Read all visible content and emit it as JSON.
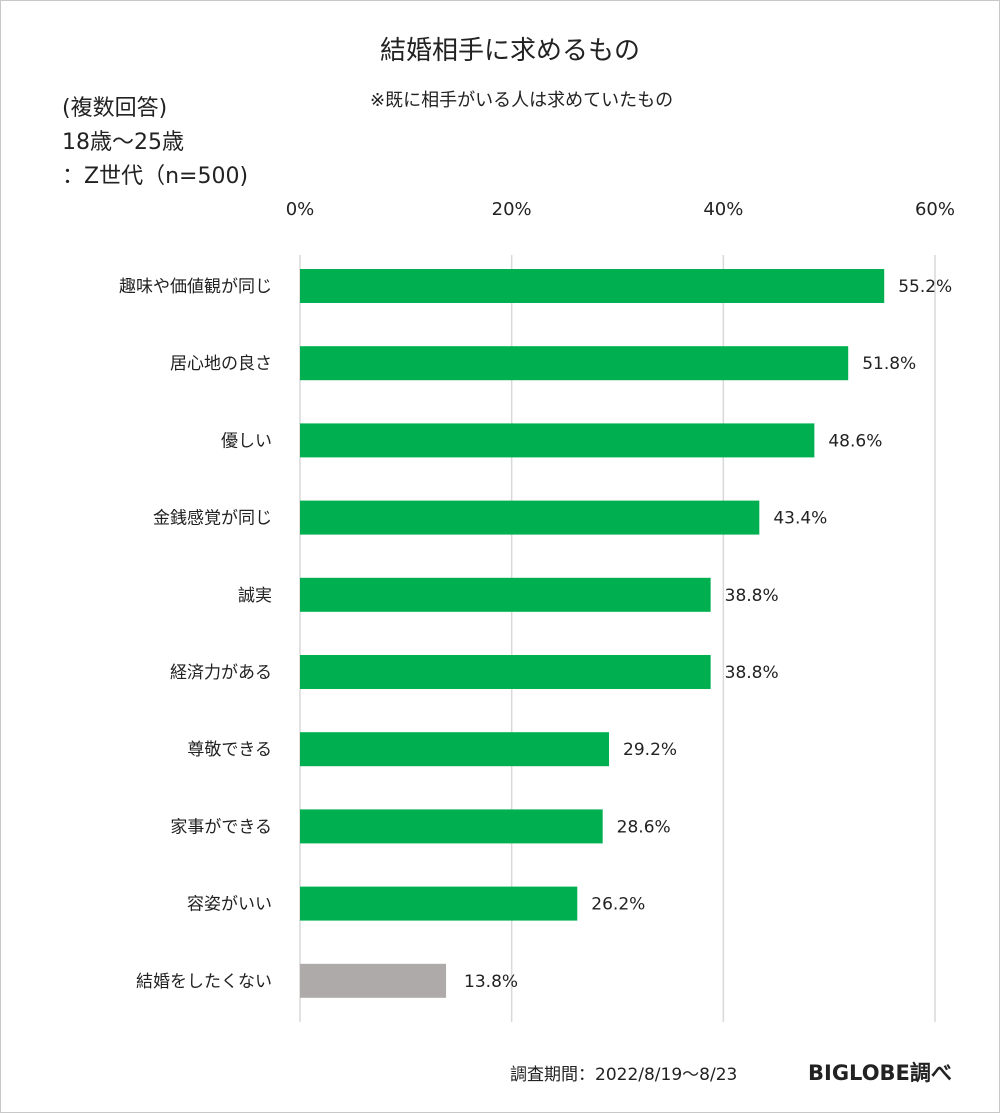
{
  "chart_data": {
    "type": "bar",
    "orientation": "horizontal",
    "title": "結婚相手に求めるもの",
    "subtitle": "※既に相手がいる人は求めていたもの",
    "notes": [
      "(複数回答)",
      "18歳～25歳",
      "：Z世代（n=500)"
    ],
    "categories": [
      "趣味や価値観が同じ",
      "居心地の良さ",
      "優しい",
      "金銭感覚が同じ",
      "誠実",
      "経済力がある",
      "尊敬できる",
      "家事ができる",
      "容姿がいい",
      "結婚をしたくない"
    ],
    "values": [
      55.2,
      51.8,
      48.6,
      43.4,
      38.8,
      38.8,
      29.2,
      28.6,
      26.2,
      13.8
    ],
    "data_labels": [
      "55.2%",
      "51.8%",
      "48.6%",
      "43.4%",
      "38.8%",
      "38.8%",
      "29.2%",
      "28.6%",
      "26.2%",
      "13.8%"
    ],
    "xlim": [
      0,
      60
    ],
    "ticks": [
      0,
      20,
      40,
      60
    ],
    "tick_labels": [
      "0%",
      "20%",
      "40%",
      "60%"
    ],
    "axis_position": "top",
    "grid": true,
    "colors": {
      "bar": "#00b050",
      "bar_last": "#aeaaaa",
      "grid": "#d9d9d9"
    }
  },
  "footer": {
    "period": "調査期間：2022/8/19～8/23",
    "source": "BIGLOBE調べ"
  }
}
